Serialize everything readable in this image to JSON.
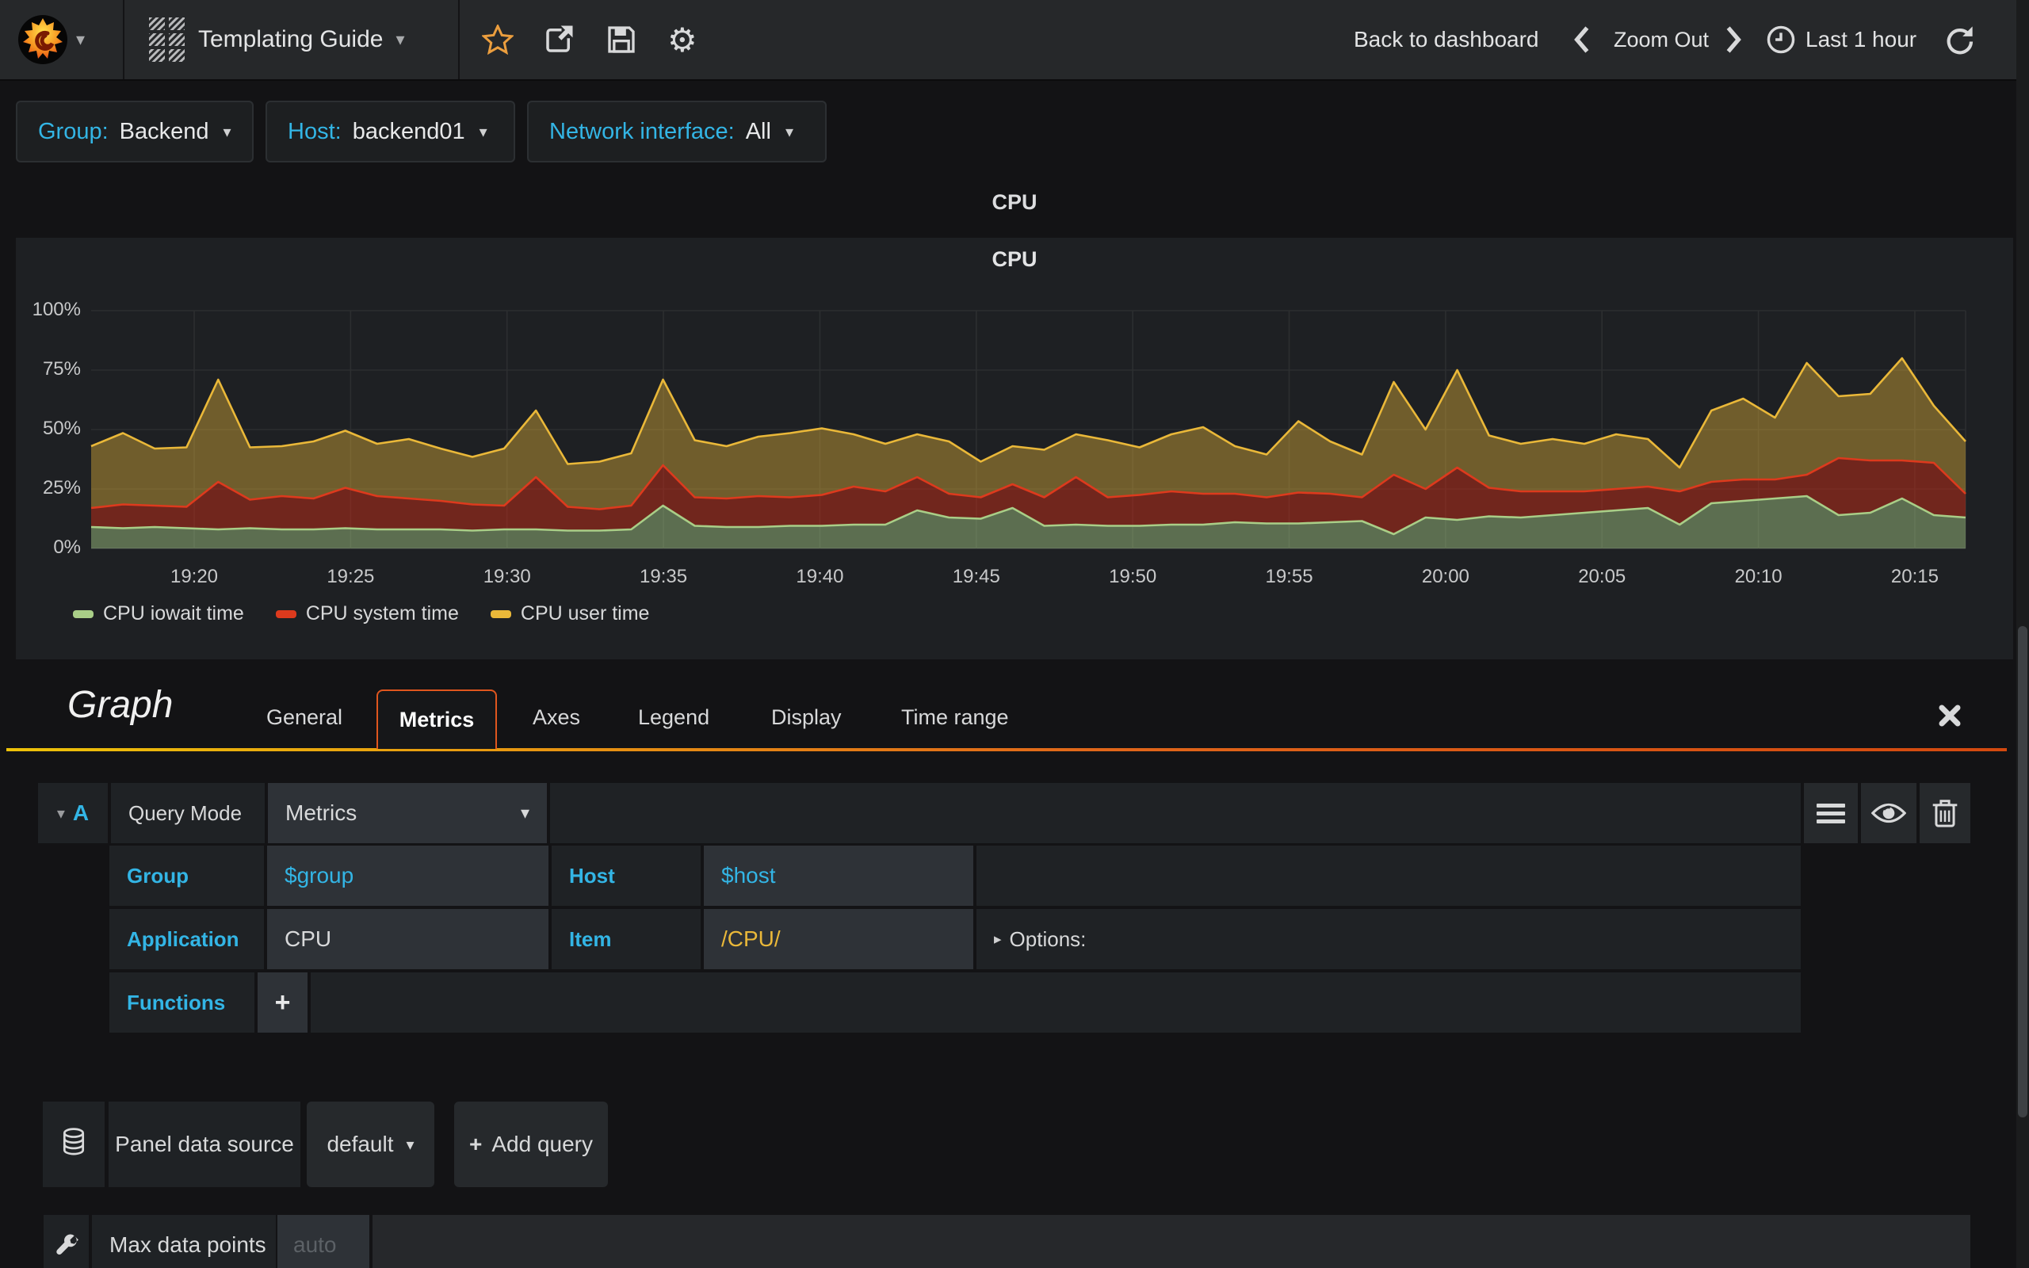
{
  "navbar": {
    "dashboard_title": "Templating Guide",
    "back_to_dashboard": "Back to dashboard",
    "zoom_out": "Zoom Out",
    "time_range": "Last 1 hour"
  },
  "template_vars": [
    {
      "label": "Group:",
      "value": "Backend"
    },
    {
      "label": "Host:",
      "value": "backend01"
    },
    {
      "label": "Network interface:",
      "value": "All"
    }
  ],
  "dashboard_row": {
    "title": "CPU"
  },
  "panel": {
    "title": "CPU"
  },
  "chart_data": {
    "type": "area",
    "stacked": true,
    "title": "CPU",
    "unit": "percent",
    "ylim": [
      0,
      100
    ],
    "y_tick_labels": [
      "100%",
      "75%",
      "50%",
      "25%",
      "0%"
    ],
    "x_tick_labels": [
      "19:20",
      "19:25",
      "19:30",
      "19:35",
      "19:40",
      "19:45",
      "19:50",
      "19:55",
      "20:00",
      "20:05",
      "20:10",
      "20:15"
    ],
    "time_start": "19:17",
    "time_end": "20:16",
    "legend_position": "bottom-left",
    "grid": true,
    "series": [
      {
        "name": "CPU iowait time",
        "color": "#A9CE87",
        "fill": "rgba(169,206,135,0.45)",
        "values": [
          9,
          8.5,
          9,
          8.5,
          8,
          8.5,
          8,
          8,
          8.5,
          8,
          8,
          8,
          7.5,
          8,
          8,
          7.5,
          7.5,
          8,
          18,
          9.5,
          9,
          9,
          9.5,
          9.5,
          10,
          10,
          16,
          13,
          12.5,
          17,
          9.5,
          10,
          9.5,
          9.5,
          10,
          10,
          11,
          10.5,
          10.5,
          11,
          11.5,
          6,
          13,
          12,
          13.5,
          13,
          14,
          15,
          16,
          17,
          10,
          19,
          20,
          21,
          22,
          14,
          15,
          21,
          14,
          13
        ]
      },
      {
        "name": "CPU system time",
        "color": "#DD3A1D",
        "fill": "rgba(190,45,25,0.52)",
        "values": [
          8,
          10,
          9,
          9,
          20,
          12,
          14,
          13,
          17,
          14,
          13,
          12,
          11,
          10,
          22,
          10,
          9,
          10,
          17,
          12,
          12,
          13,
          12,
          13,
          16,
          14,
          14,
          10,
          9,
          10,
          12,
          20,
          12,
          13,
          14,
          13,
          12,
          11,
          13,
          12,
          10,
          25,
          12,
          22,
          12,
          11,
          10,
          9,
          9,
          9,
          14,
          9,
          9,
          8,
          9,
          24,
          22,
          16,
          22,
          10
        ]
      },
      {
        "name": "CPU user time",
        "color": "#EAB839",
        "fill": "rgba(234,184,57,0.40)",
        "values": [
          26,
          30,
          24,
          25,
          43,
          22,
          21,
          24,
          24,
          22,
          25,
          22,
          20,
          24,
          28,
          18,
          20,
          22,
          36,
          24,
          22,
          25,
          27,
          28,
          22,
          20,
          18,
          22,
          15,
          16,
          20,
          18,
          24,
          20,
          24,
          28,
          20,
          18,
          30,
          22,
          18,
          39,
          25,
          41,
          22,
          20,
          22,
          20,
          23,
          20,
          10,
          30,
          34,
          26,
          47,
          26,
          28,
          43,
          24,
          22
        ]
      }
    ]
  },
  "editor": {
    "panel_type_title": "Graph",
    "active_tab": "Metrics",
    "tabs": [
      {
        "label": "General"
      },
      {
        "label": "Metrics"
      },
      {
        "label": "Axes"
      },
      {
        "label": "Legend"
      },
      {
        "label": "Display"
      },
      {
        "label": "Time range"
      }
    ],
    "query": {
      "ref": "A",
      "mode_label": "Query Mode",
      "mode_value": "Metrics",
      "group_label": "Group",
      "group_value": "$group",
      "host_label": "Host",
      "host_value": "$host",
      "application_label": "Application",
      "application_value": "CPU",
      "item_label": "Item",
      "item_value": "/CPU/",
      "options_label": "Options:",
      "functions_label": "Functions",
      "add_function_label": "+"
    },
    "datasource": {
      "label": "Panel data source",
      "value": "default",
      "add_query_plus": "+",
      "add_query_label": "Add query"
    },
    "max_data_points": {
      "label": "Max data points",
      "placeholder": "auto"
    }
  },
  "colors": {
    "accent_cyan": "#33b5e5",
    "tab_orange": "#e0561e",
    "value_yellow": "#eab839",
    "star_orange": "#eb9e3e"
  }
}
